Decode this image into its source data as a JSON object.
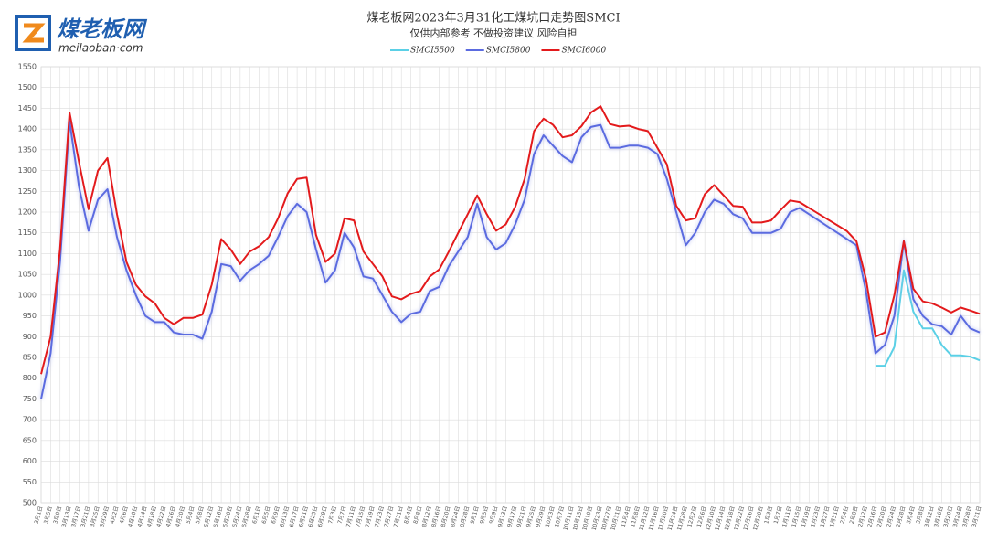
{
  "logo": {
    "name": "煤老板网",
    "site": "meilaoban·com"
  },
  "chart_data": {
    "type": "line",
    "title": "煤老板网2023年3月31化工煤坑口走势图SMCI",
    "subtitle": "仅供内部参考 不做投资建议 风险自担",
    "categories": [
      "3月1日",
      "3月5日",
      "3月9日",
      "3月13日",
      "3月17日",
      "3月21日",
      "3月25日",
      "3月29日",
      "4月2日",
      "4月6日",
      "4月10日",
      "4月14日",
      "4月18日",
      "4月22日",
      "4月26日",
      "4月30日",
      "5月4日",
      "5月8日",
      "5月12日",
      "5月16日",
      "5月20日",
      "5月24日",
      "5月28日",
      "6月1日",
      "6月5日",
      "6月9日",
      "6月13日",
      "6月17日",
      "6月21日",
      "6月25日",
      "6月29日",
      "7月3日",
      "7月7日",
      "7月11日",
      "7月15日",
      "7月19日",
      "7月23日",
      "7月27日",
      "7月31日",
      "8月4日",
      "8月8日",
      "8月12日",
      "8月16日",
      "8月20日",
      "8月24日",
      "8月28日",
      "9月1日",
      "9月5日",
      "9月9日",
      "9月13日",
      "9月17日",
      "9月21日",
      "9月25日",
      "9月29日",
      "10月3日",
      "10月7日",
      "10月11日",
      "10月15日",
      "10月19日",
      "10月23日",
      "10月27日",
      "10月31日",
      "11月4日",
      "11月8日",
      "11月12日",
      "11月16日",
      "11月20日",
      "11月24日",
      "11月28日",
      "12月2日",
      "12月6日",
      "12月10日",
      "12月14日",
      "12月18日",
      "12月22日",
      "12月26日",
      "12月30日",
      "1月3日",
      "1月7日",
      "1月11日",
      "1月15日",
      "1月19日",
      "1月23日",
      "1月27日",
      "1月31日",
      "2月4日",
      "2月8日",
      "2月12日",
      "2月16日",
      "2月20日",
      "2月24日",
      "2月28日",
      "3月4日",
      "3月8日",
      "3月12日",
      "3月16日",
      "3月20日",
      "3月24日",
      "3月28日",
      "3月31日"
    ],
    "series": [
      {
        "name": "SMCI5500",
        "color": "#5bd0e6",
        "values": [
          null,
          null,
          null,
          null,
          null,
          null,
          null,
          null,
          null,
          null,
          null,
          null,
          null,
          null,
          null,
          null,
          null,
          null,
          null,
          null,
          null,
          null,
          null,
          null,
          null,
          null,
          null,
          null,
          null,
          null,
          null,
          null,
          null,
          null,
          null,
          null,
          null,
          null,
          null,
          null,
          null,
          null,
          null,
          null,
          null,
          null,
          null,
          null,
          null,
          null,
          null,
          null,
          null,
          null,
          null,
          null,
          null,
          null,
          null,
          null,
          null,
          null,
          null,
          null,
          null,
          null,
          null,
          null,
          null,
          null,
          null,
          null,
          null,
          null,
          null,
          null,
          null,
          null,
          null,
          null,
          null,
          null,
          null,
          null,
          null,
          null,
          null,
          null,
          830,
          830,
          875,
          1060,
          960,
          920,
          920,
          880,
          855,
          855,
          852,
          843
        ]
      },
      {
        "name": "SMCI5800",
        "color": "#5b6be0",
        "values": [
          750,
          860,
          1080,
          1420,
          1260,
          1155,
          1230,
          1255,
          1140,
          1060,
          1000,
          950,
          935,
          935,
          910,
          905,
          905,
          895,
          960,
          1075,
          1070,
          1035,
          1060,
          1075,
          1095,
          1140,
          1190,
          1220,
          1200,
          1110,
          1030,
          1060,
          1150,
          1115,
          1045,
          1040,
          1000,
          960,
          935,
          955,
          960,
          1010,
          1020,
          1070,
          1105,
          1140,
          1220,
          1140,
          1110,
          1125,
          1170,
          1230,
          1340,
          1385,
          1360,
          1335,
          1320,
          1380,
          1405,
          1410,
          1355,
          1355,
          1360,
          1360,
          1355,
          1340,
          1280,
          1200,
          1120,
          1150,
          1200,
          1230,
          1220,
          1195,
          1185,
          1150,
          1150,
          1150,
          1160,
          1200,
          1210,
          1195,
          1180,
          1165,
          1150,
          1135,
          1120,
          1010,
          860,
          880,
          950,
          1130,
          990,
          950,
          930,
          925,
          905,
          950,
          920,
          910
        ]
      },
      {
        "name": "SMCI6000",
        "color": "#e31a1c",
        "values": [
          810,
          900,
          1110,
          1440,
          1320,
          1207,
          1300,
          1330,
          1195,
          1080,
          1025,
          997,
          980,
          945,
          930,
          945,
          945,
          953,
          1025,
          1135,
          1110,
          1075,
          1105,
          1118,
          1140,
          1185,
          1245,
          1280,
          1283,
          1145,
          1080,
          1100,
          1185,
          1180,
          1105,
          1075,
          1045,
          997,
          990,
          1003,
          1010,
          1045,
          1062,
          1105,
          1150,
          1195,
          1240,
          1195,
          1155,
          1170,
          1212,
          1280,
          1395,
          1425,
          1410,
          1380,
          1385,
          1407,
          1440,
          1455,
          1412,
          1406,
          1408,
          1400,
          1395,
          1355,
          1315,
          1215,
          1180,
          1185,
          1243,
          1265,
          1240,
          1215,
          1213,
          1175,
          1175,
          1180,
          1205,
          1228,
          1224,
          1210,
          1196,
          1182,
          1168,
          1154,
          1130,
          1040,
          900,
          910,
          1000,
          1130,
          1015,
          985,
          980,
          970,
          958,
          970,
          963,
          955
        ]
      }
    ],
    "ylim": [
      500,
      1550
    ],
    "yticks": [
      500,
      550,
      600,
      650,
      700,
      750,
      800,
      850,
      900,
      950,
      1000,
      1050,
      1100,
      1150,
      1200,
      1250,
      1300,
      1350,
      1400,
      1450,
      1500,
      1550
    ],
    "grid": true,
    "legend": "top"
  }
}
